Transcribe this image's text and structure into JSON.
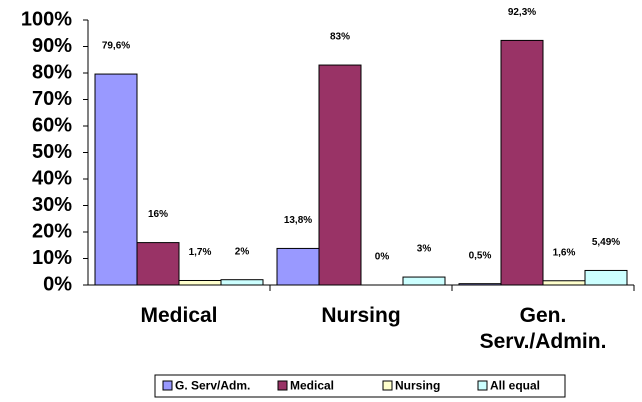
{
  "chart_data": {
    "type": "bar",
    "categories": [
      "Medical",
      "Nursing",
      "Gen. Serv./Admin."
    ],
    "series": [
      {
        "name": "G. Serv/Adm.",
        "color": "#9999ff",
        "values": [
          79.6,
          13.8,
          0.5
        ],
        "value_labels": [
          "79,6%",
          "13,8%",
          "0,5%"
        ]
      },
      {
        "name": "Medical",
        "color": "#993366",
        "values": [
          16,
          83,
          92.3
        ],
        "value_labels": [
          "16%",
          "83%",
          "92,3%"
        ]
      },
      {
        "name": "Nursing",
        "color": "#ffffcc",
        "values": [
          1.7,
          0,
          1.6
        ],
        "value_labels": [
          "1,7%",
          "0%",
          "1,6%"
        ]
      },
      {
        "name": "All equal",
        "color": "#ccffff",
        "values": [
          2,
          3,
          5.49
        ],
        "value_labels": [
          "2%",
          "3%",
          "5,49%"
        ]
      }
    ],
    "ylim": [
      0,
      100
    ],
    "yticks": [
      {
        "value": 0,
        "label": "0%"
      },
      {
        "value": 10,
        "label": "10%"
      },
      {
        "value": 20,
        "label": "20%"
      },
      {
        "value": 30,
        "label": "30%"
      },
      {
        "value": 40,
        "label": "40%"
      },
      {
        "value": 50,
        "label": "50%"
      },
      {
        "value": 60,
        "label": "60%"
      },
      {
        "value": 70,
        "label": "70%"
      },
      {
        "value": 80,
        "label": "80%"
      },
      {
        "value": 90,
        "label": "90%"
      },
      {
        "value": 100,
        "label": "100%"
      }
    ],
    "grid": false,
    "legend": "bottom"
  }
}
